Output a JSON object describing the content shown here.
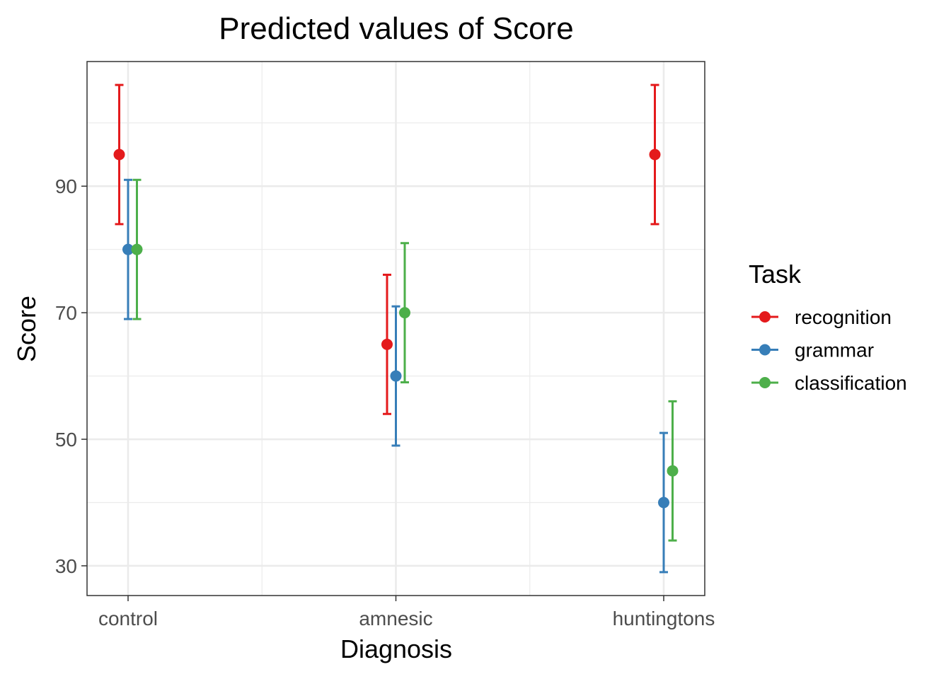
{
  "chart_data": {
    "type": "scatter",
    "title": "Predicted values of Score",
    "xlabel": "Diagnosis",
    "ylabel": "Score",
    "categories": [
      "control",
      "amnesic",
      "huntingtons"
    ],
    "y_ticks": [
      30,
      50,
      70,
      90
    ],
    "ylim": [
      25.3,
      109.7
    ],
    "grid": true,
    "legend": {
      "title": "Task",
      "placement": "right"
    },
    "series": [
      {
        "name": "recognition",
        "color": "#E41A1C",
        "values": [
          95,
          65,
          95
        ],
        "lower": [
          84,
          54,
          84
        ],
        "upper": [
          106,
          76,
          106
        ]
      },
      {
        "name": "grammar",
        "color": "#377EB8",
        "values": [
          80,
          60,
          40
        ],
        "lower": [
          69,
          49,
          29
        ],
        "upper": [
          91,
          71,
          51
        ]
      },
      {
        "name": "classification",
        "color": "#4DAF4A",
        "values": [
          80,
          70,
          45
        ],
        "lower": [
          69,
          59,
          34
        ],
        "upper": [
          91,
          81,
          56
        ]
      }
    ]
  }
}
